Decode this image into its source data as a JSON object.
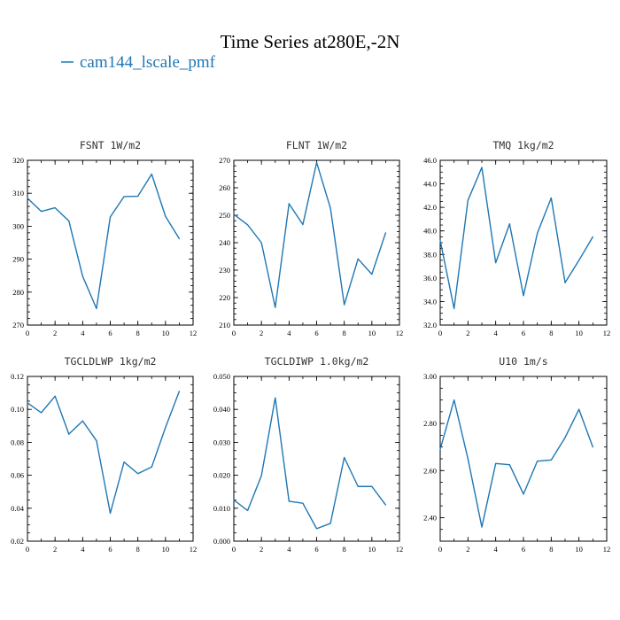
{
  "figure": {
    "title": "Time Series at280E,-2N",
    "legend": [
      {
        "label": "cam144_lscale_pmf",
        "color": "#1f77b4"
      }
    ]
  },
  "chart_data": [
    {
      "type": "line",
      "title": "FSNT   1W/m2",
      "x": [
        0,
        1,
        2,
        3,
        4,
        5,
        6,
        7,
        8,
        9,
        10,
        11
      ],
      "series": [
        {
          "values": [
            308.5,
            304.5,
            305.6,
            301.6,
            284.8,
            275.0,
            302.8,
            309.0,
            309.1,
            315.8,
            303.0,
            296.2
          ]
        }
      ],
      "xlim": [
        0,
        12
      ],
      "ylim": [
        270,
        320
      ],
      "xticks": [
        0,
        2,
        4,
        6,
        8,
        10,
        12
      ],
      "xticks_minor": 1,
      "yticks": [
        270,
        280,
        290,
        300,
        310,
        320
      ],
      "ytick_labels": [
        "270",
        "280",
        "290",
        "300",
        "310",
        "320"
      ],
      "yticks_minor": 2
    },
    {
      "type": "line",
      "title": "FLNT   1W/m2",
      "x": [
        0,
        1,
        2,
        3,
        4,
        5,
        6,
        7,
        8,
        9,
        10,
        11
      ],
      "series": [
        {
          "values": [
            250.3,
            246.5,
            240.0,
            216.4,
            254.2,
            246.6,
            269.2,
            252.6,
            217.4,
            234.1,
            228.5,
            243.6
          ]
        }
      ],
      "xlim": [
        0,
        12
      ],
      "ylim": [
        210,
        270
      ],
      "xticks": [
        0,
        2,
        4,
        6,
        8,
        10,
        12
      ],
      "xticks_minor": 1,
      "yticks": [
        210,
        220,
        230,
        240,
        250,
        260,
        270
      ],
      "ytick_labels": [
        "210",
        "220",
        "230",
        "240",
        "250",
        "260",
        "270"
      ],
      "yticks_minor": 2
    },
    {
      "type": "line",
      "title": "TMQ   1kg/m2",
      "x": [
        0,
        1,
        2,
        3,
        4,
        5,
        6,
        7,
        8,
        9,
        10,
        11
      ],
      "series": [
        {
          "values": [
            39.2,
            33.4,
            42.6,
            45.4,
            37.3,
            40.6,
            34.5,
            39.8,
            42.8,
            35.6,
            37.5,
            39.5
          ]
        }
      ],
      "xlim": [
        0,
        12
      ],
      "ylim": [
        32,
        46
      ],
      "xticks": [
        0,
        2,
        4,
        6,
        8,
        10,
        12
      ],
      "xticks_minor": 1,
      "yticks": [
        32,
        34,
        36,
        38,
        40,
        42,
        44,
        46
      ],
      "ytick_labels": [
        "32.0",
        "34.0",
        "36.0",
        "38.0",
        "40.0",
        "42.0",
        "44.0",
        "46.0"
      ],
      "yticks_minor": 0.5
    },
    {
      "type": "line",
      "title": "TGCLDLWP   1kg/m2",
      "x": [
        0,
        1,
        2,
        3,
        4,
        5,
        6,
        7,
        8,
        9,
        10,
        11
      ],
      "series": [
        {
          "values": [
            0.104,
            0.098,
            0.108,
            0.085,
            0.093,
            0.081,
            0.037,
            0.068,
            0.061,
            0.065,
            0.089,
            0.111
          ]
        }
      ],
      "xlim": [
        0,
        12
      ],
      "ylim": [
        0.02,
        0.12
      ],
      "xticks": [
        0,
        2,
        4,
        6,
        8,
        10,
        12
      ],
      "xticks_minor": 1,
      "yticks": [
        0.02,
        0.04,
        0.06,
        0.08,
        0.1,
        0.12
      ],
      "ytick_labels": [
        "0.02",
        "0.04",
        "0.06",
        "0.08",
        "0.10",
        "0.12"
      ],
      "yticks_minor": 0.005
    },
    {
      "type": "line",
      "title": "TGCLDIWP   1.0kg/m2",
      "x": [
        0,
        1,
        2,
        3,
        4,
        5,
        6,
        7,
        8,
        9,
        10,
        11
      ],
      "series": [
        {
          "values": [
            0.0125,
            0.0093,
            0.0199,
            0.0435,
            0.0121,
            0.0115,
            0.0038,
            0.0054,
            0.0254,
            0.0166,
            0.0166,
            0.011
          ]
        }
      ],
      "xlim": [
        0,
        12
      ],
      "ylim": [
        0,
        0.05
      ],
      "xticks": [
        0,
        2,
        4,
        6,
        8,
        10,
        12
      ],
      "xticks_minor": 1,
      "yticks": [
        0,
        0.01,
        0.02,
        0.03,
        0.04,
        0.05
      ],
      "ytick_labels": [
        "0.000",
        "0.010",
        "0.020",
        "0.030",
        "0.040",
        "0.050"
      ],
      "yticks_minor": 0.0025
    },
    {
      "type": "line",
      "title": "U10   1m/s",
      "x": [
        0,
        1,
        2,
        3,
        4,
        5,
        6,
        7,
        8,
        9,
        10,
        11
      ],
      "series": [
        {
          "values": [
            2.69,
            2.9,
            2.65,
            2.36,
            2.63,
            2.625,
            2.5,
            2.64,
            2.645,
            2.74,
            2.86,
            2.7
          ]
        }
      ],
      "xlim": [
        0,
        12
      ],
      "ylim": [
        2.3,
        3.0
      ],
      "xticks": [
        0,
        2,
        4,
        6,
        8,
        10,
        12
      ],
      "xticks_minor": 1,
      "yticks": [
        2.4,
        2.6,
        2.8,
        3.0
      ],
      "ytick_labels": [
        "2.40",
        "2.60",
        "2.80",
        "3.00"
      ],
      "yticks_minor": 0.05
    }
  ]
}
